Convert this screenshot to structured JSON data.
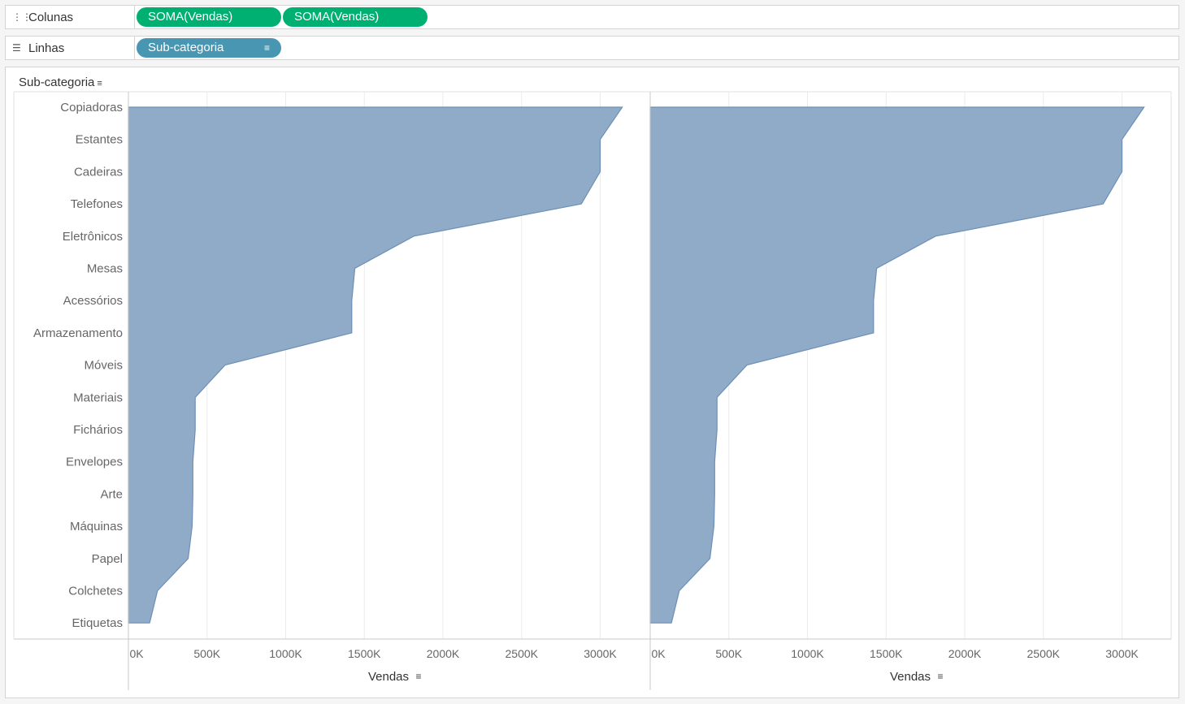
{
  "shelves": {
    "columns": {
      "label": "Colunas",
      "icon": "columns-icon",
      "pills": [
        "SOMA(Vendas)",
        "SOMA(Vendas)"
      ]
    },
    "rows": {
      "label": "Linhas",
      "icon": "rows-icon",
      "pills": [
        "Sub-categoria"
      ]
    }
  },
  "colors": {
    "area_fill": "#8fabc8",
    "area_stroke": "#6e8fb5",
    "pill_green": "#00b073",
    "pill_blue": "#4996b2",
    "gridline": "#ebebeb"
  },
  "chart_data": {
    "type": "area",
    "row_header": "Sub-categoria",
    "categories": [
      "Copiadoras",
      "Estantes",
      "Cadeiras",
      "Telefones",
      "Eletrônicos",
      "Mesas",
      "Acessórios",
      "Armazenamento",
      "Móveis",
      "Materiais",
      "Fichários",
      "Envelopes",
      "Arte",
      "Máquinas",
      "Papel",
      "Colchetes",
      "Etiquetas"
    ],
    "panes": [
      {
        "xlabel": "Vendas",
        "xlim": [
          0,
          3200
        ],
        "xticks": [
          "0K",
          "500K",
          "1000K",
          "1500K",
          "2000K",
          "2500K",
          "3000K"
        ],
        "series": [
          {
            "name": "SOMA(Vendas)",
            "values": [
              3140,
              3000,
              3000,
              2880,
              1815,
              1440,
              1420,
              1420,
              615,
              425,
              425,
              410,
              410,
              405,
              380,
              185,
              135
            ]
          }
        ]
      },
      {
        "xlabel": "Vendas",
        "xlim": [
          0,
          3200
        ],
        "xticks": [
          "0K",
          "500K",
          "1000K",
          "1500K",
          "2000K",
          "2500K",
          "3000K"
        ],
        "series": [
          {
            "name": "SOMA(Vendas)",
            "values": [
              3140,
              3000,
              3000,
              2880,
              1815,
              1440,
              1420,
              1420,
              615,
              425,
              425,
              410,
              410,
              405,
              380,
              185,
              135
            ]
          }
        ]
      }
    ],
    "grid": true,
    "sorted": "descending"
  }
}
